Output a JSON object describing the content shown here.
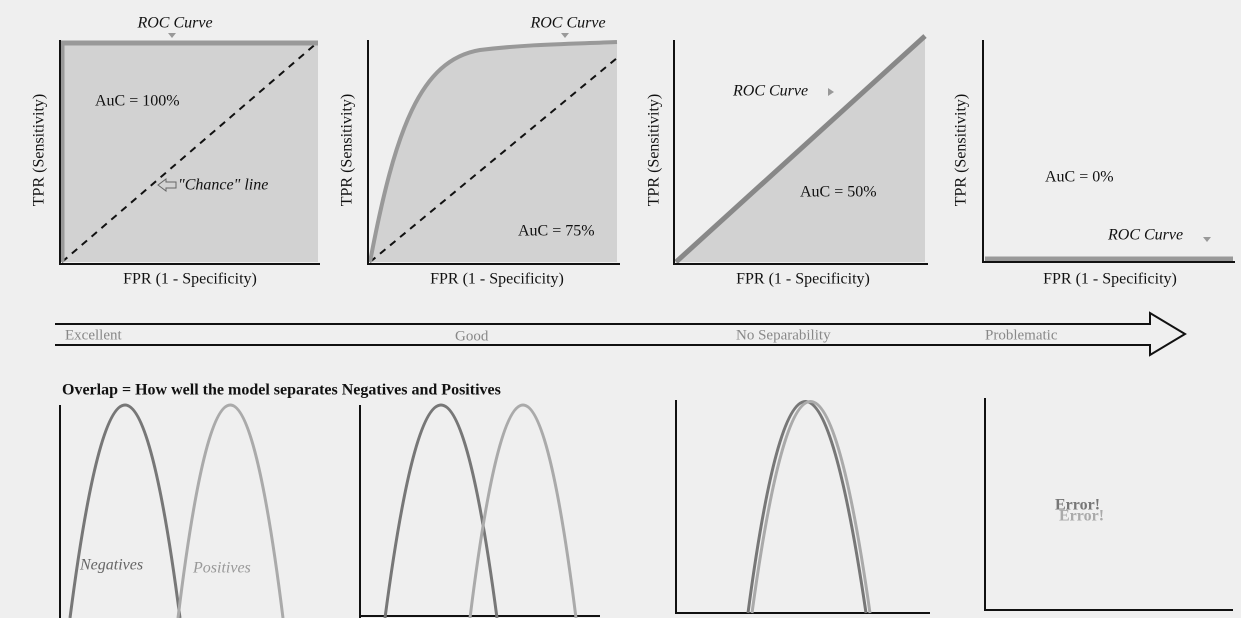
{
  "roc_panels": [
    {
      "roc_label": "ROC Curve",
      "y_label": "TPR (Sensitivity)",
      "x_label": "FPR (1 - Specificity)",
      "auc": "AuC = 100%",
      "chance_label": "\"Chance\" line"
    },
    {
      "roc_label": "ROC Curve",
      "y_label": "TPR (Sensitivity)",
      "x_label": "FPR (1 - Specificity)",
      "auc": "AuC = 75%"
    },
    {
      "roc_label": "ROC Curve",
      "y_label": "TPR (Sensitivity)",
      "x_label": "FPR (1 - Specificity)",
      "auc": "AuC = 50%"
    },
    {
      "roc_label": "ROC Curve",
      "y_label": "TPR (Sensitivity)",
      "x_label": "FPR (1 - Specificity)",
      "auc": "AuC = 0%"
    }
  ],
  "scale": [
    "Excellent",
    "Good",
    "No Separability",
    "Problematic"
  ],
  "overlap": {
    "title": "Overlap = How well the model separates Negatives and Positives",
    "negatives": "Negatives",
    "positives": "Positives",
    "error": "Error!"
  }
}
